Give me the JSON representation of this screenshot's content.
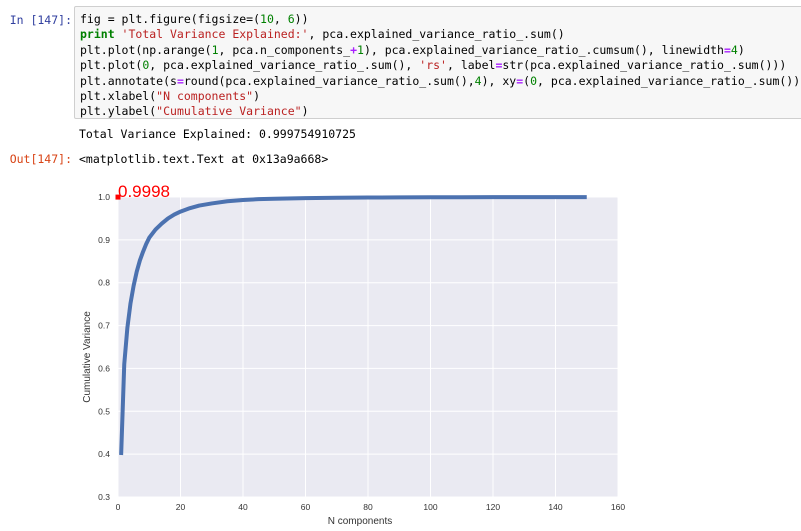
{
  "input_prompt": "In [147]:",
  "output_prompt": "Out[147]:",
  "code": {
    "line1": {
      "a": "fig = plt.figure(figsize=(",
      "b": "10",
      "c": ", ",
      "d": "6",
      "e": "))"
    },
    "line2": {
      "kw": "print",
      "str": " 'Total Variance Explained:'",
      "rest": ", pca.explained_variance_ratio_.sum()"
    },
    "line3": {
      "a": "plt.plot(np.arange(",
      "b": "1",
      "c": ", pca.n_components_",
      "op": "+",
      "d": "1",
      "e": "), pca.explained_variance_ratio_.cumsum(), linewidth",
      "op2": "=",
      "f": "4",
      "g": ")"
    },
    "line4": {
      "a": "plt.plot(",
      "b": "0",
      "c": ", pca.explained_variance_ratio_.sum(), ",
      "str": "'rs'",
      "d": ", label",
      "op": "=",
      "e": "str(pca.explained_variance_ratio_.sum()))"
    },
    "line5": {
      "a": "plt.annotate(s",
      "op": "=",
      "b": "round(pca.explained_variance_ratio_.sum(),",
      "c": "4",
      "d": "), xy",
      "op2": "=",
      "e": "(",
      "f": "0",
      "g": ", pca.explained_variance_ratio_.sum()))"
    },
    "line6": {
      "a": "plt.xlabel(",
      "str": "\"N components\"",
      "b": ")"
    },
    "line7": {
      "a": "plt.ylabel(",
      "str": "\"Cumulative Variance\"",
      "b": ")"
    }
  },
  "stdout_text": "Total Variance Explained: 0.999754910725",
  "output_repr": "<matplotlib.text.Text at 0x13a9a668>",
  "chart_data": {
    "type": "line",
    "xlabel": "N components",
    "ylabel": "Cumulative Variance",
    "xlim": [
      0,
      160
    ],
    "ylim": [
      0.3,
      1.0
    ],
    "x_ticks": [
      "0",
      "20",
      "40",
      "60",
      "80",
      "100",
      "120",
      "140",
      "160"
    ],
    "y_ticks": [
      "0.3",
      "0.4",
      "0.5",
      "0.6",
      "0.7",
      "0.8",
      "0.9",
      "1.0"
    ],
    "grid": true,
    "annotation": {
      "text": "0.9998",
      "x": 0,
      "y": 0.9998,
      "color": "#ff0000"
    },
    "marker": {
      "x": 0,
      "y": 0.9998,
      "color": "#ff0000",
      "shape": "square"
    },
    "series": [
      {
        "color": "#4c72b0",
        "x": [
          1,
          2,
          3,
          4,
          5,
          6,
          7,
          8,
          9,
          10,
          12,
          14,
          16,
          18,
          20,
          23,
          26,
          30,
          35,
          40,
          45,
          50,
          60,
          70,
          80,
          90,
          100,
          110,
          120,
          130,
          140,
          150
        ],
        "y": [
          0.398,
          0.61,
          0.695,
          0.752,
          0.793,
          0.826,
          0.852,
          0.872,
          0.89,
          0.905,
          0.924,
          0.938,
          0.95,
          0.959,
          0.966,
          0.974,
          0.98,
          0.985,
          0.99,
          0.993,
          0.995,
          0.996,
          0.9975,
          0.9982,
          0.9987,
          0.999,
          0.9993,
          0.9995,
          0.9996,
          0.9997,
          0.99975,
          0.99975
        ]
      }
    ]
  },
  "colors": {
    "plot_background": "#eaeaf2",
    "grid": "#ffffff",
    "line": "#4c72b0",
    "annotation": "#ff0000",
    "input_prompt": "#303f9f",
    "output_prompt": "#d84315"
  }
}
